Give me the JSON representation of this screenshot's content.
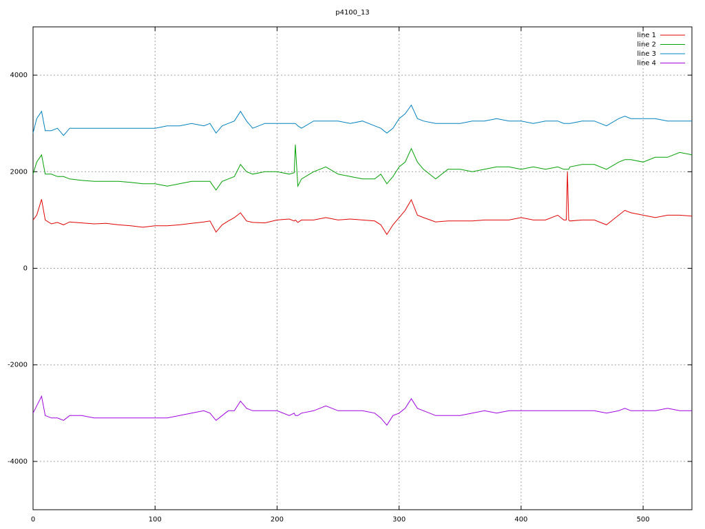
{
  "chart_data": {
    "type": "line",
    "title": "p4100_13",
    "x": [
      0,
      3,
      7,
      10,
      15,
      20,
      25,
      30,
      40,
      50,
      60,
      70,
      80,
      90,
      100,
      110,
      120,
      130,
      140,
      145,
      150,
      155,
      160,
      165,
      170,
      175,
      180,
      190,
      200,
      210,
      214,
      215,
      217,
      220,
      230,
      240,
      250,
      260,
      270,
      280,
      285,
      290,
      295,
      300,
      305,
      310,
      315,
      320,
      330,
      340,
      350,
      360,
      370,
      380,
      390,
      400,
      410,
      420,
      430,
      435,
      437,
      438,
      439,
      440,
      450,
      460,
      470,
      480,
      485,
      490,
      500,
      510,
      520,
      530,
      540
    ],
    "series": [
      {
        "name": "line 1",
        "color": "#e00000",
        "values": [
          1000,
          1100,
          1430,
          1000,
          920,
          950,
          900,
          960,
          940,
          920,
          930,
          900,
          880,
          850,
          880,
          880,
          900,
          930,
          960,
          980,
          750,
          900,
          980,
          1050,
          1150,
          980,
          950,
          940,
          1000,
          1020,
          980,
          1000,
          950,
          1000,
          1000,
          1050,
          1000,
          1020,
          1000,
          980,
          900,
          700,
          900,
          1050,
          1200,
          1420,
          1100,
          1050,
          960,
          980,
          980,
          980,
          1000,
          1000,
          1000,
          1050,
          1000,
          1000,
          1100,
          1000,
          1000,
          2000,
          1000,
          980,
          1000,
          1000,
          900,
          1100,
          1200,
          1150,
          1100,
          1050,
          1100,
          1100,
          1080
        ]
      },
      {
        "name": "line 2",
        "color": "#00a000",
        "values": [
          1950,
          2200,
          2350,
          1950,
          1950,
          1900,
          1900,
          1850,
          1820,
          1800,
          1800,
          1800,
          1780,
          1750,
          1750,
          1700,
          1750,
          1800,
          1800,
          1800,
          1620,
          1800,
          1850,
          1900,
          2150,
          2000,
          1950,
          2000,
          2000,
          1950,
          1980,
          2560,
          1700,
          1850,
          2000,
          2100,
          1950,
          1900,
          1850,
          1850,
          1950,
          1750,
          1900,
          2100,
          2200,
          2480,
          2200,
          2050,
          1850,
          2050,
          2050,
          2000,
          2050,
          2100,
          2100,
          2050,
          2100,
          2050,
          2100,
          2050,
          2050,
          2050,
          2050,
          2100,
          2150,
          2150,
          2050,
          2200,
          2250,
          2250,
          2200,
          2300,
          2300,
          2400,
          2350
        ]
      },
      {
        "name": "line 3",
        "color": "#0080c0",
        "values": [
          2800,
          3100,
          3250,
          2850,
          2850,
          2900,
          2750,
          2900,
          2900,
          2900,
          2900,
          2900,
          2900,
          2900,
          2900,
          2950,
          2950,
          3000,
          2950,
          3000,
          2800,
          2950,
          3000,
          3050,
          3250,
          3050,
          2900,
          3000,
          3000,
          3000,
          3000,
          3000,
          2950,
          2900,
          3050,
          3050,
          3050,
          3000,
          3050,
          2950,
          2900,
          2800,
          2900,
          3100,
          3200,
          3380,
          3100,
          3050,
          3000,
          3000,
          3000,
          3050,
          3050,
          3100,
          3050,
          3050,
          3000,
          3050,
          3050,
          3000,
          3000,
          3000,
          3000,
          3000,
          3050,
          3050,
          2950,
          3100,
          3150,
          3100,
          3100,
          3100,
          3050,
          3050,
          3050
        ]
      },
      {
        "name": "line 4",
        "color": "#a000e0",
        "values": [
          -3000,
          -2850,
          -2650,
          -3050,
          -3100,
          -3100,
          -3150,
          -3050,
          -3050,
          -3100,
          -3100,
          -3100,
          -3100,
          -3100,
          -3100,
          -3100,
          -3050,
          -3000,
          -2950,
          -3000,
          -3150,
          -3050,
          -2950,
          -2950,
          -2750,
          -2900,
          -2950,
          -2950,
          -2950,
          -3050,
          -3000,
          -3050,
          -3050,
          -3000,
          -2950,
          -2850,
          -2950,
          -2950,
          -2950,
          -3000,
          -3100,
          -3250,
          -3050,
          -3000,
          -2900,
          -2700,
          -2900,
          -2950,
          -3050,
          -3050,
          -3050,
          -3000,
          -2950,
          -3000,
          -2950,
          -2950,
          -2950,
          -2950,
          -2950,
          -2950,
          -2950,
          -2950,
          -2950,
          -2950,
          -2950,
          -2950,
          -3000,
          -2950,
          -2900,
          -2950,
          -2950,
          -2950,
          -2900,
          -2950,
          -2950
        ]
      }
    ],
    "xlim": [
      0,
      540
    ],
    "xticks": [
      0,
      100,
      200,
      300,
      400,
      500
    ],
    "ylim": [
      -5000,
      5000
    ],
    "yticks": [
      -4000,
      -2000,
      0,
      2000,
      4000
    ],
    "grid": true,
    "legend": "top-right"
  }
}
